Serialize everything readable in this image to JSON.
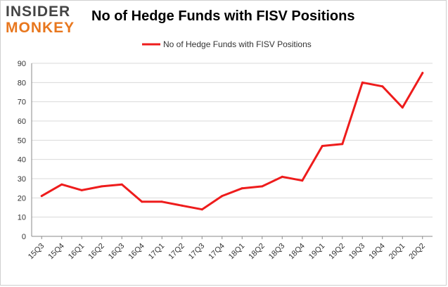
{
  "logo": {
    "line1": "INSIDER",
    "line2": "MONKEY"
  },
  "colors": {
    "series": "#ee1c1c",
    "grid": "#d9d9d9",
    "axis": "#888888",
    "logo_dark": "#444444",
    "logo_orange": "#e8771e"
  },
  "chart_data": {
    "type": "line",
    "title": "No of Hedge Funds with FISV Positions",
    "xlabel": "",
    "ylabel": "",
    "ylim": [
      0,
      90
    ],
    "yticks": [
      "0",
      "10",
      "20",
      "30",
      "40",
      "50",
      "60",
      "70",
      "80",
      "90"
    ],
    "grid": true,
    "legend_position": "top-center",
    "categories": [
      "15Q3",
      "15Q4",
      "16Q1",
      "16Q2",
      "16Q3",
      "16Q4",
      "17Q1",
      "17Q2",
      "17Q3",
      "17Q4",
      "18Q1",
      "18Q2",
      "18Q3",
      "18Q4",
      "19Q1",
      "19Q2",
      "19Q3",
      "19Q4",
      "20Q1",
      "20Q2"
    ],
    "series": [
      {
        "name": "No of Hedge Funds with FISV Positions",
        "color": "#ee1c1c",
        "values": [
          21,
          27,
          24,
          26,
          27,
          18,
          18,
          16,
          14,
          21,
          25,
          26,
          31,
          29,
          47,
          48,
          80,
          78,
          67,
          85
        ]
      }
    ]
  }
}
